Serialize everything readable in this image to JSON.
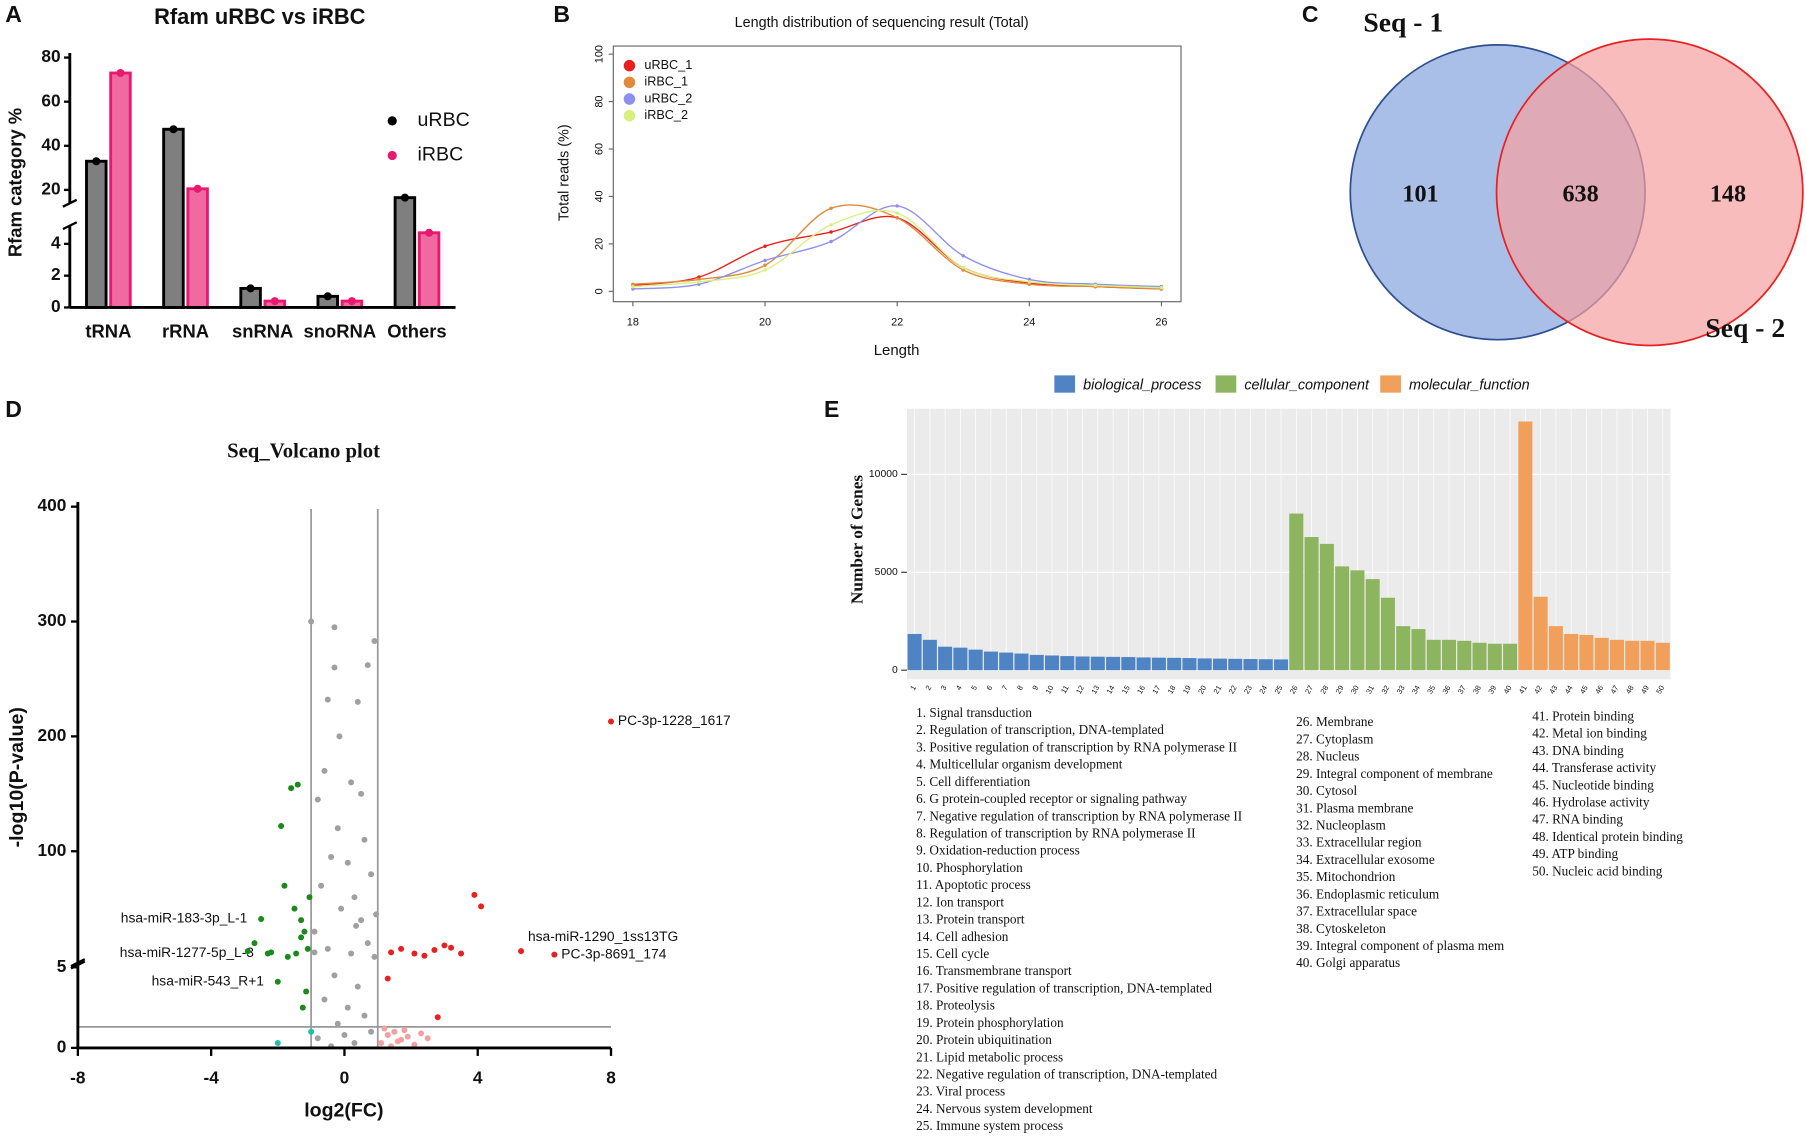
{
  "chart_data": [
    {
      "type": "bar",
      "panel": "A",
      "title": "Rfam uRBC vs iRBC",
      "ylabel": "Rfam category %",
      "categories": [
        "tRNA",
        "rRNA",
        "snRNA",
        "snoRNA",
        "Others"
      ],
      "series": [
        {
          "name": "uRBC",
          "color": "#000000",
          "values": [
            33,
            47.5,
            1.2,
            0.7,
            16.5
          ]
        },
        {
          "name": "iRBC",
          "color": "#e8196f",
          "values": [
            73,
            20.5,
            0.4,
            0.4,
            4.7
          ]
        }
      ],
      "ylim": [
        0,
        80
      ],
      "ybreak": [
        5,
        15
      ],
      "yticks": [
        0,
        2,
        4,
        20,
        40,
        60,
        80
      ],
      "legend": "right"
    },
    {
      "type": "line",
      "panel": "B",
      "title": "Length distribution of sequencing result (Total)",
      "xlabel": "Length",
      "ylabel": "Total reads (%)",
      "x": [
        18,
        19,
        20,
        21,
        22,
        23,
        24,
        25,
        26
      ],
      "series": [
        {
          "name": "uRBC_1",
          "color": "#e82020",
          "values": [
            2.5,
            6,
            19,
            25,
            31,
            10,
            3.5,
            2,
            1
          ]
        },
        {
          "name": "iRBC_1",
          "color": "#e08a3a",
          "values": [
            3,
            5,
            11,
            35,
            31,
            9,
            3,
            2,
            1
          ]
        },
        {
          "name": "uRBC_2",
          "color": "#8f8ff0",
          "values": [
            1,
            3,
            13,
            21,
            36,
            15,
            5,
            3,
            2
          ]
        },
        {
          "name": "iRBC_2",
          "color": "#d8f080",
          "values": [
            2,
            4,
            9,
            28,
            33,
            10,
            4,
            2.5,
            1.5
          ]
        }
      ],
      "xlim": [
        18,
        26
      ],
      "xticks": [
        18,
        20,
        22,
        24,
        26
      ],
      "ylim": [
        0,
        100
      ],
      "yticks": [
        0,
        20,
        40,
        60,
        80,
        100
      ],
      "legend": "top-left"
    },
    {
      "type": "venn",
      "panel": "C",
      "sets": [
        {
          "name": "Seq - 1",
          "color": "#a9bfe8",
          "edge": "#2e4f91"
        },
        {
          "name": "Seq - 2",
          "color": "#f7a0a0",
          "edge": "#e82020"
        }
      ],
      "values": [
        101,
        638,
        148
      ]
    },
    {
      "type": "scatter",
      "panel": "D",
      "title": "Seq_Volcano plot",
      "xlabel": "log2(FC)",
      "ylabel": "-log10(P-value)",
      "xlim": [
        -8,
        8
      ],
      "xticks": [
        -8,
        -4,
        0,
        4,
        8
      ],
      "ylim": [
        0,
        400
      ],
      "ybreak": [
        5,
        5
      ],
      "yticks": [
        0,
        5,
        100,
        200,
        300,
        400
      ],
      "vlines": [
        -1,
        1
      ],
      "hline": 1.3,
      "series": [
        {
          "color": "#a0a0a0",
          "x": [
            -1,
            -0.3,
            -0.3,
            0.9,
            0.7,
            -0.5,
            0.4,
            -0.6,
            0.2,
            -0.8,
            0.5,
            -0.2,
            0.6,
            -0.4,
            0.1,
            0.8,
            -0.7,
            0.3,
            -0.1,
            0.5,
            -0.9,
            0.7,
            -0.5,
            0.2,
            0.9,
            -0.3,
            0.4,
            -0.6,
            0.1,
            0.6,
            -0.2,
            0.8,
            -0.8,
            0.3,
            -0.4,
            0.0,
            -0.9,
            0.95,
            -0.15,
            0.35
          ],
          "values": [
            300,
            295,
            260,
            283,
            262,
            232,
            230,
            170,
            160,
            145,
            150,
            120,
            110,
            95,
            90,
            80,
            70,
            60,
            50,
            40,
            30,
            20,
            15,
            11,
            8,
            4.5,
            3.8,
            3,
            2.5,
            2,
            1.5,
            1.0,
            0.6,
            0.3,
            0.1,
            0.8,
            12,
            45,
            200,
            35
          ]
        },
        {
          "color": "#1a8a1a",
          "x": [
            -2.5,
            -2.3,
            -2.0,
            -1.8,
            -1.5,
            -1.3,
            -1.2,
            -1.1,
            -2.7,
            -1.9,
            -1.4,
            -1.6,
            -2.2,
            -1.7,
            -1.3,
            -1.05,
            -1.15,
            -2.9,
            -1.25,
            -1.45
          ],
          "values": [
            41,
            11,
            4.1,
            70,
            50,
            40,
            30,
            15,
            20,
            122,
            158,
            155,
            12,
            8,
            25,
            60,
            3.5,
            13,
            2.5,
            11
          ],
          "labels": [
            "hsa-miR-183-3p_L-1",
            "hsa-miR-1277-5p_L-3",
            "hsa-miR-543_R+1",
            null,
            null,
            null,
            null,
            null,
            null,
            null,
            null,
            null,
            null,
            null,
            null,
            null,
            null,
            null,
            null,
            null
          ]
        },
        {
          "color": "#e82020",
          "x": [
            8,
            5.3,
            6.3,
            3.9,
            4.1,
            1.7,
            2.1,
            2.7,
            3.0,
            3.5,
            1.4,
            3.2,
            2.4,
            1.3,
            2.8
          ],
          "values": [
            213,
            13,
            10,
            62,
            52,
            15,
            11,
            14,
            18,
            11,
            12,
            16,
            9,
            4.3,
            1.9
          ],
          "labels": [
            "PC-3p-1228_1617",
            "hsa-miR-1290_1ss13TG",
            "PC-3p-8691_174",
            null,
            null,
            null,
            null,
            null,
            null,
            null,
            null,
            null,
            null,
            null,
            null
          ]
        },
        {
          "color": "#f4a0a0",
          "x": [
            1.1,
            1.3,
            1.5,
            1.7,
            1.9,
            2.1,
            2.3,
            1.2,
            1.6,
            2.5,
            1.4,
            1.8
          ],
          "values": [
            0.3,
            0.8,
            1.0,
            0.5,
            0.7,
            0.2,
            0.9,
            1.2,
            0.4,
            0.6,
            0.1,
            1.1
          ]
        },
        {
          "color": "#20c0a0",
          "x": [
            -1.0,
            -2.0
          ],
          "values": [
            1.0,
            0.3
          ]
        }
      ]
    },
    {
      "type": "bar",
      "panel": "E",
      "ylabel": "Number of Genes",
      "background": "#ebebeb",
      "grid": true,
      "legend": "top",
      "categories": [
        "1",
        "2",
        "3",
        "4",
        "5",
        "6",
        "7",
        "8",
        "9",
        "10",
        "11",
        "12",
        "13",
        "14",
        "15",
        "16",
        "17",
        "18",
        "19",
        "20",
        "21",
        "22",
        "23",
        "24",
        "25",
        "26",
        "27",
        "28",
        "29",
        "30",
        "31",
        "32",
        "33",
        "34",
        "35",
        "36",
        "37",
        "38",
        "39",
        "40",
        "41",
        "42",
        "43",
        "44",
        "45",
        "46",
        "47",
        "48",
        "49",
        "50"
      ],
      "series": [
        {
          "name": "biological_process",
          "color": "#4e84c4",
          "values": [
            1850,
            1550,
            1200,
            1150,
            1050,
            950,
            900,
            850,
            780,
            750,
            720,
            700,
            690,
            680,
            670,
            650,
            640,
            630,
            620,
            600,
            590,
            580,
            570,
            560,
            550,
            null,
            null,
            null,
            null,
            null,
            null,
            null,
            null,
            null,
            null,
            null,
            null,
            null,
            null,
            null,
            null,
            null,
            null,
            null,
            null,
            null,
            null,
            null,
            null,
            null
          ]
        },
        {
          "name": "cellular_component",
          "color": "#8db560",
          "values": [
            null,
            null,
            null,
            null,
            null,
            null,
            null,
            null,
            null,
            null,
            null,
            null,
            null,
            null,
            null,
            null,
            null,
            null,
            null,
            null,
            null,
            null,
            null,
            null,
            null,
            8000,
            6800,
            6450,
            5300,
            5100,
            4650,
            3700,
            2250,
            2100,
            1550,
            1550,
            1500,
            1400,
            1350,
            1350,
            null,
            null,
            null,
            null,
            null,
            null,
            null,
            null,
            null,
            null
          ]
        },
        {
          "name": "molecular_function",
          "color": "#f0a05a",
          "values": [
            null,
            null,
            null,
            null,
            null,
            null,
            null,
            null,
            null,
            null,
            null,
            null,
            null,
            null,
            null,
            null,
            null,
            null,
            null,
            null,
            null,
            null,
            null,
            null,
            null,
            null,
            null,
            null,
            null,
            null,
            null,
            null,
            null,
            null,
            null,
            null,
            null,
            null,
            null,
            null,
            12700,
            3750,
            2250,
            1850,
            1800,
            1650,
            1550,
            1500,
            1500,
            1400
          ]
        }
      ],
      "ylim": [
        0,
        13350
      ],
      "yticks": [
        0,
        5000,
        10000
      ],
      "terms": [
        "1. Signal transduction",
        "2. Regulation of transcription, DNA-templated",
        "3. Positive regulation of transcription by RNA polymerase II",
        "4. Multicellular organism development",
        "5. Cell differentiation",
        "6. G protein-coupled receptor or signaling pathway",
        "7. Negative regulation of transcription by RNA polymerase II",
        "8. Regulation of transcription by RNA polymerase II",
        "9. Oxidation-reduction process",
        "10. Phosphorylation",
        "11. Apoptotic process",
        "12. Ion transport",
        "13. Protein transport",
        "14. Cell adhesion",
        "15. Cell cycle",
        "16. Transmembrane transport",
        "17. Positive regulation of transcription, DNA-templated",
        "18. Proteolysis",
        "19. Protein phosphorylation",
        "20. Protein ubiquitination",
        "21. Lipid metabolic process",
        "22. Negative regulation of transcription, DNA-templated",
        "23. Viral process",
        "24. Nervous system development",
        "25. Immune system process",
        "26. Membrane",
        "27. Cytoplasm",
        "28. Nucleus",
        "29. Integral component of membrane",
        "30. Cytosol",
        "31. Plasma membrane",
        "32. Nucleoplasm",
        "33. Extracellular region",
        "34. Extracellular exosome",
        "35. Mitochondrion",
        "36. Endoplasmic reticulum",
        "37. Extracellular space",
        "38. Cytoskeleton",
        "39. Integral component of plasma mem",
        "40. Golgi apparatus",
        "41. Protein binding",
        "42. Metal ion binding",
        "43. DNA binding",
        "44. Transferase activity",
        "45. Nucleotide binding",
        "46. Hydrolase activity",
        "47. RNA binding",
        "48. Identical protein binding",
        "49. ATP binding",
        "50. Nucleic acid binding"
      ]
    }
  ]
}
